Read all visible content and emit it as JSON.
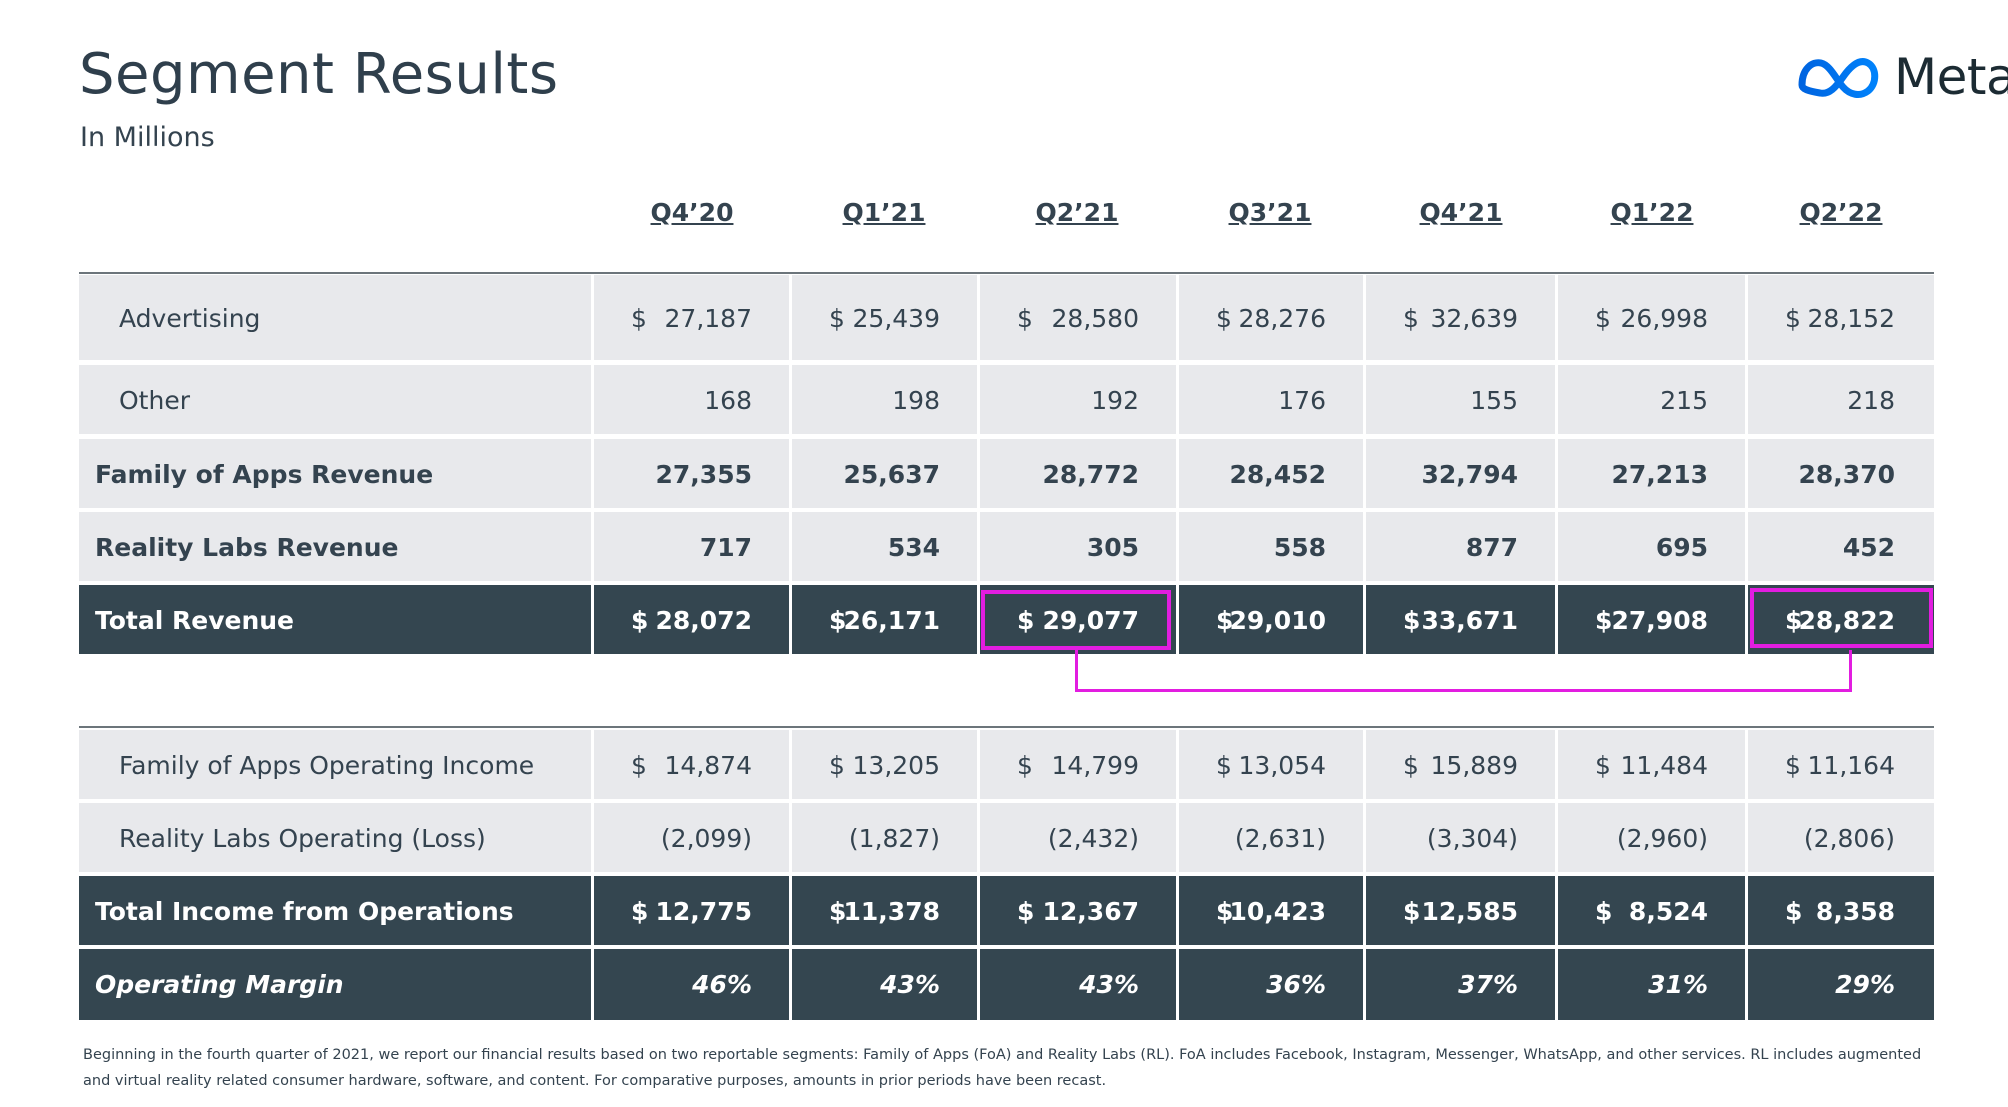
{
  "title": "Segment Results",
  "subtitle": "In Millions",
  "logo": {
    "text": "Meta",
    "icon": "meta-infinity-icon"
  },
  "columns": [
    "Q4’20",
    "Q1’21",
    "Q2’21",
    "Q3’21",
    "Q4’21",
    "Q1’22",
    "Q2’22"
  ],
  "rows": [
    {
      "label": "Advertising",
      "style": "light",
      "values": [
        "27,187",
        "25,439",
        "28,580",
        "28,276",
        "32,639",
        "26,998",
        "28,152"
      ],
      "dollar": true
    },
    {
      "label": "Other",
      "style": "light",
      "values": [
        "168",
        "198",
        "192",
        "176",
        "155",
        "215",
        "218"
      ],
      "dollar": false
    },
    {
      "label": "Family of Apps Revenue",
      "style": "light-bold",
      "values": [
        "27,355",
        "25,637",
        "28,772",
        "28,452",
        "32,794",
        "27,213",
        "28,370"
      ],
      "dollar": false
    },
    {
      "label": "Reality Labs Revenue",
      "style": "light-bold",
      "values": [
        "717",
        "534",
        "305",
        "558",
        "877",
        "695",
        "452"
      ],
      "dollar": false
    },
    {
      "label": "Total Revenue",
      "style": "dark-bold",
      "values": [
        "28,072",
        "26,171",
        "29,077",
        "29,010",
        "33,671",
        "27,908",
        "28,822"
      ],
      "dollar": true
    },
    {
      "label": "Family of Apps Operating Income",
      "style": "light",
      "values": [
        "14,874",
        "13,205",
        "14,799",
        "13,054",
        "15,889",
        "11,484",
        "11,164"
      ],
      "dollar": true
    },
    {
      "label": "Reality Labs Operating (Loss)",
      "style": "light",
      "values": [
        "(2,099)",
        "(1,827)",
        "(2,432)",
        "(2,631)",
        "(3,304)",
        "(2,960)",
        "(2,806)"
      ],
      "dollar": false
    },
    {
      "label": "Total Income from Operations",
      "style": "dark-bold",
      "values": [
        "12,775",
        "11,378",
        "12,367",
        "10,423",
        "12,585",
        "8,524",
        "8,358"
      ],
      "dollar": true
    },
    {
      "label": "Operating Margin",
      "style": "dark-bold-italic",
      "values": [
        "46%",
        "43%",
        "43%",
        "36%",
        "37%",
        "31%",
        "29%"
      ],
      "dollar": false
    }
  ],
  "currency_symbol": "$",
  "highlight": {
    "row": "Total Revenue",
    "columns": [
      "Q2’21",
      "Q2’22"
    ],
    "color": "#e21de0"
  },
  "colors": {
    "dark_row": "#344650",
    "light_row": "#e8e9ec",
    "text": "#34434f"
  },
  "footnote": "Beginning in the fourth quarter of 2021, we report our financial results based on two reportable segments: Family of Apps (FoA) and Reality Labs (RL). FoA includes Facebook, Instagram, Messenger, WhatsApp, and other services. RL includes augmented and virtual reality related consumer hardware, software, and content. For comparative purposes, amounts in prior periods have been recast."
}
